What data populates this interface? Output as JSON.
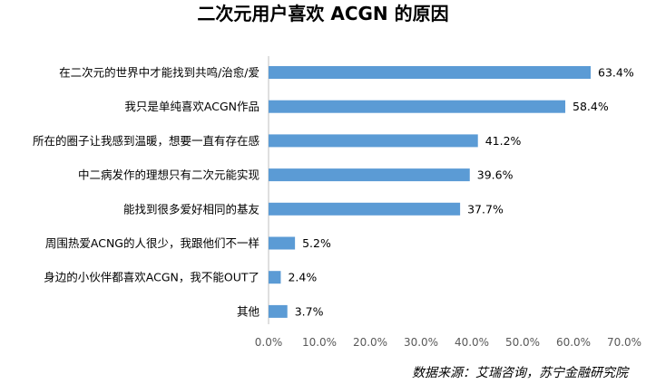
{
  "chart_data": {
    "type": "bar",
    "orientation": "horizontal",
    "title": "二次元用户喜欢 ACGN 的原因",
    "categories": [
      "在二次元的世界中才能找到共鸣/治愈/爱",
      "我只是单纯喜欢ACGN作品",
      "所在的圈子让我感到温暖，想要一直有存在感",
      "中二病发作的理想只有二次元能实现",
      "能找到很多爱好相同的基友",
      "周围热爱ACNG的人很少，我跟他们不一样",
      "身边的小伙伴都喜欢ACGN，我不能OUT了",
      "其他"
    ],
    "values": [
      63.4,
      58.4,
      41.2,
      39.6,
      37.7,
      5.2,
      2.4,
      3.7
    ],
    "value_labels": [
      "63.4%",
      "58.4%",
      "41.2%",
      "39.6%",
      "37.7%",
      "5.2%",
      "2.4%",
      "3.7%"
    ],
    "xlim": [
      0,
      70
    ],
    "x_ticks": [
      "0.0%",
      "10.0%",
      "20.0%",
      "30.0%",
      "40.0%",
      "50.0%",
      "60.0%",
      "70.0%"
    ],
    "grid": false,
    "legend": "none",
    "bar_color": "#5b9bd5",
    "source": "数据来源：艾瑞咨询，苏宁金融研究院"
  }
}
